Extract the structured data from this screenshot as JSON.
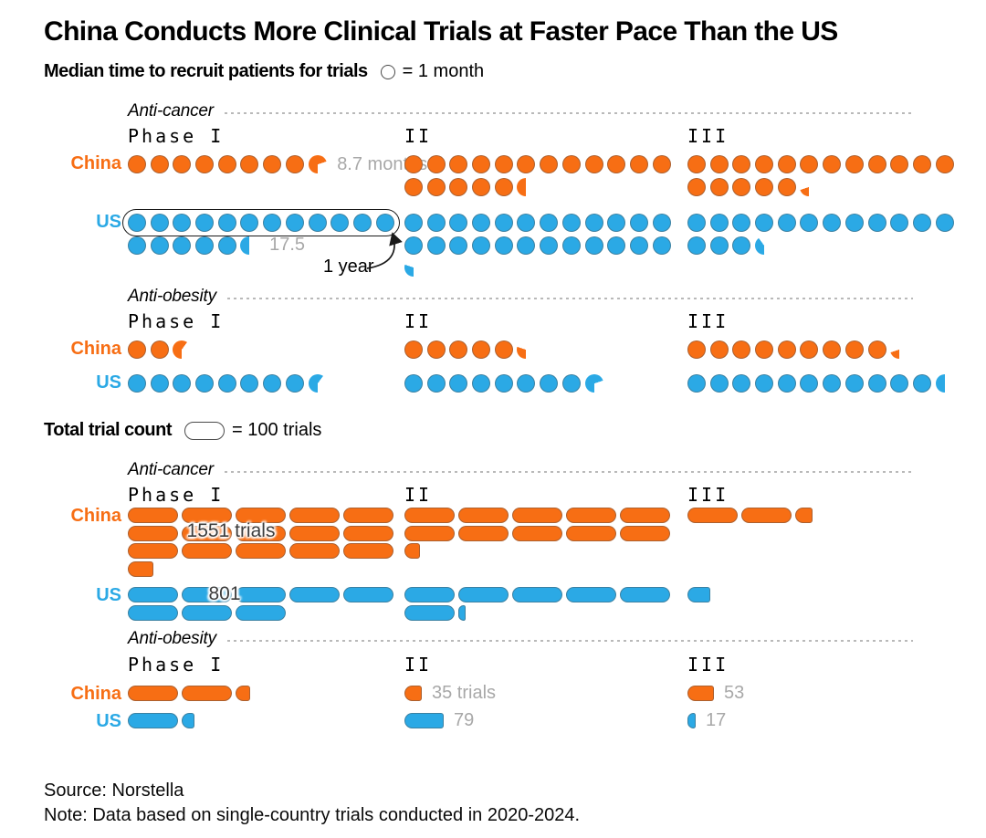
{
  "title": "China Conducts More Clinical Trials at Faster Pace Than the US",
  "colors": {
    "china": "#f76e14",
    "us": "#2ba9e5",
    "value_label_gray": "#a8a8a8",
    "text": "#000000"
  },
  "chart_data": [
    {
      "type": "bar",
      "title": "Median time to recruit patients for trials",
      "legend_label": "= 1 month",
      "unit_per_symbol": {
        "symbol": "circle",
        "value": 1,
        "unit": "months"
      },
      "groups": [
        {
          "category": "Anti-cancer",
          "phases": [
            "Phase I",
            "II",
            "III"
          ],
          "series": [
            {
              "name": "China",
              "values": [
                8.7,
                17.5,
                17.2
              ],
              "value_labels": [
                {
                  "phase": 0,
                  "text": "8.7 months"
                }
              ]
            },
            {
              "name": "US",
              "values": [
                17.5,
                24.3,
                15.4
              ],
              "value_labels": [
                {
                  "phase": 0,
                  "text": "17.5"
                }
              ],
              "annotation": {
                "phase": 0,
                "circled_symbols": 12,
                "text": "1 year"
              }
            }
          ]
        },
        {
          "category": "Anti-obesity",
          "phases": [
            "Phase I",
            "II",
            "III"
          ],
          "series": [
            {
              "name": "China",
              "values": [
                2.6,
                5.3,
                9.2
              ]
            },
            {
              "name": "US",
              "values": [
                8.6,
                8.7,
                11.5
              ]
            }
          ]
        }
      ]
    },
    {
      "type": "bar",
      "title": "Total trial count",
      "legend_label": "= 100 trials",
      "unit_per_symbol": {
        "symbol": "pill",
        "value": 100,
        "unit": "trials"
      },
      "groups": [
        {
          "category": "Anti-cancer",
          "phases": [
            "Phase I",
            "II",
            "III"
          ],
          "series": [
            {
              "name": "China",
              "values": [
                1551,
                1030,
                235
              ],
              "overlay_labels": [
                {
                  "phase": 0,
                  "text": "1551 trials"
                }
              ]
            },
            {
              "name": "US",
              "values": [
                801,
                615,
                45
              ],
              "overlay_labels": [
                {
                  "phase": 0,
                  "text": "801"
                }
              ]
            }
          ]
        },
        {
          "category": "Anti-obesity",
          "phases": [
            "Phase I",
            "II",
            "III"
          ],
          "series": [
            {
              "name": "China",
              "values": [
                230,
                35,
                53
              ],
              "value_labels": [
                {
                  "phase": 1,
                  "text": "35 trials"
                },
                {
                  "phase": 2,
                  "text": "53"
                }
              ]
            },
            {
              "name": "US",
              "values": [
                125,
                79,
                17
              ],
              "value_labels": [
                {
                  "phase": 1,
                  "text": "79"
                },
                {
                  "phase": 2,
                  "text": "17"
                }
              ]
            }
          ]
        }
      ]
    }
  ],
  "footer": {
    "source": "Source: Norstella",
    "note": "Note: Data based on single-country trials conducted in 2020-2024."
  }
}
